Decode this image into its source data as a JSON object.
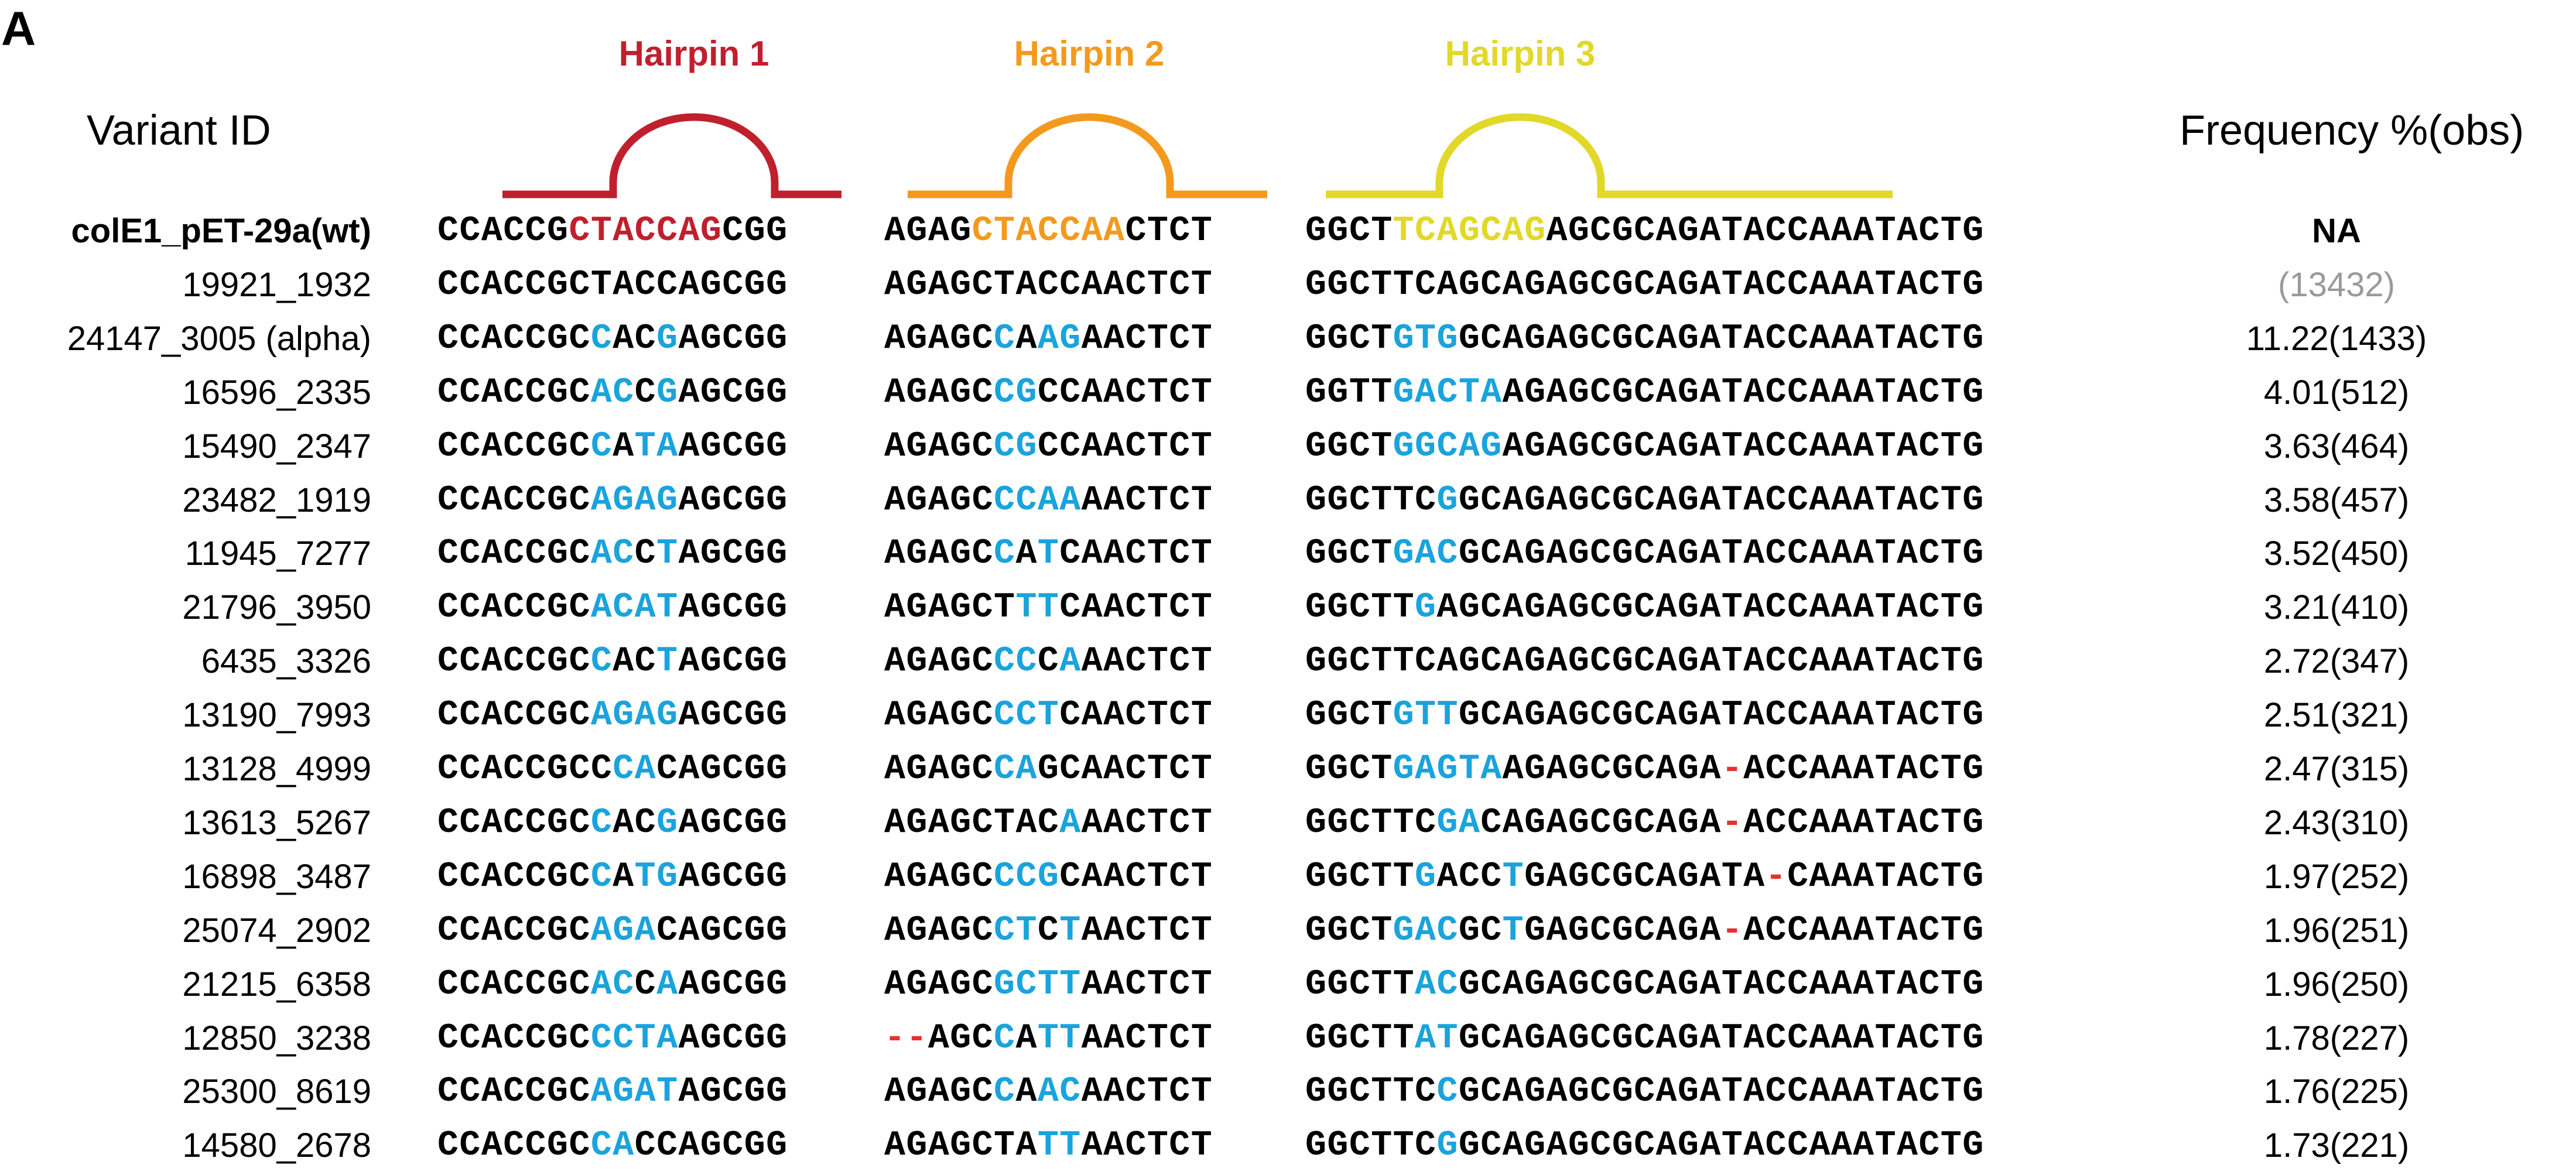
{
  "panel_label": "A",
  "headers": {
    "variant_id": "Variant ID",
    "frequency": "Frequency %(obs)"
  },
  "hairpins": [
    {
      "label": "Hairpin 1",
      "color": "#c0202e"
    },
    {
      "label": "Hairpin 2",
      "color": "#f39a1e"
    },
    {
      "label": "Hairpin 3",
      "color": "#e2d829"
    }
  ],
  "colors": {
    "base": "#000000",
    "mutation": "#1aa3dc",
    "deletion": "#e8312c",
    "hairpin1": "#c0202e",
    "hairpin2": "#f39a1e",
    "hairpin3": "#e2d829",
    "grey_count": "#9a9a9a"
  },
  "rows": [
    {
      "id": "colE1_pET-29a(wt)",
      "freq": "NA",
      "bold": true,
      "seq1": "CCACCGCTACCAGCGG",
      "seq2": "AGAGCTACCAACTCT",
      "seq3": "GGCTTCAGCAGAGCGCAGATACCAAATACTG",
      "m1": "bbbbbb1111111bbb",
      "m2": "bbbb2222222bbbb",
      "m3": "bbbb3333333bbbbbbbbbbbbbbbbbbbb"
    },
    {
      "id": "19921_1932",
      "freq": "(13432)",
      "grey": true,
      "seq1": "CCACCGCTACCAGCGG",
      "seq2": "AGAGCTACCAACTCT",
      "seq3": "GGCTTCAGCAGAGCGCAGATACCAAATACTG",
      "m1": "bbbbbbbbbbbbbbbb",
      "m2": "bbbbbbbbbbbbbbb",
      "m3": "bbbbbbbbbbbbbbbbbbbbbbbbbbbbbbb"
    },
    {
      "id": "24147_3005 (alpha)",
      "freq": "11.22(1433)",
      "seq1": "CCACCGCCACGAGCGG",
      "seq2": "AGAGCCAAGAACTCT",
      "seq3": "GGCTGTGGCAGAGCGCAGATACCAAATACTG",
      "m1": "bbbbbbbmbbmbbbbb",
      "m2": "bbbbbmbmmbbbbbb",
      "m3": "bbbbmmmbbbbbbbbbbbbbbbbbbbbbbbb"
    },
    {
      "id": "16596_2335",
      "freq": "4.01(512)",
      "seq1": "CCACCGCACCGAGCGG",
      "seq2": "AGAGCCGCCAACTCT",
      "seq3": "GGTTGACTAAGAGCGCAGATACCAAATACTG",
      "m1": "bbbbbbbmmbmbbbbb",
      "m2": "bbbbbmmbbbbbbbb",
      "m3": "bbbbmmmmmbbbbbbbbbbbbbbbbbbbbbb"
    },
    {
      "id": "15490_2347",
      "freq": "3.63(464)",
      "seq1": "CCACCGCCATAAGCGG",
      "seq2": "AGAGCCGCCAACTCT",
      "seq3": "GGCTGGCAGAGAGCGCAGATACCAAATACTG",
      "m1": "bbbbbbbmbmmbbbbb",
      "m2": "bbbbbmmbbbbbbbb",
      "m3": "bbbbmmmmmbbbbbbbbbbbbbbbbbbbbbb"
    },
    {
      "id": "23482_1919",
      "freq": "3.58(457)",
      "seq1": "CCACCGCAGAGAGCGG",
      "seq2": "AGAGCCCAAAACTCT",
      "seq3": "GGCTTCGGCAGAGCGCAGATACCAAATACTG",
      "m1": "bbbbbbbmmmmbbbbb",
      "m2": "bbbbbmmmmbbbbbb",
      "m3": "bbbbbbmbbbbbbbbbbbbbbbbbbbbbbbb"
    },
    {
      "id": "11945_7277",
      "freq": "3.52(450)",
      "seq1": "CCACCGCACCTAGCGG",
      "seq2": "AGAGCCATCAACTCT",
      "seq3": "GGCTGACGCAGAGCGCAGATACCAAATACTG",
      "m1": "bbbbbbbmmbmbbbbb",
      "m2": "bbbbbmbmbbbbbbb",
      "m3": "bbbbmmmbbbbbbbbbbbbbbbbbbbbbbbb"
    },
    {
      "id": "21796_3950",
      "freq": "3.21(410)",
      "seq1": "CCACCGCACATAGCGG",
      "seq2": "AGAGCTTTCAACTCT",
      "seq3": "GGCTTGAGCAGAGCGCAGATACCAAATACTG",
      "m1": "bbbbbbbmmmmbbbbb",
      "m2": "bbbbbbmmbbbbbbb",
      "m3": "bbbbbmbbbbbbbbbbbbbbbbbbbbbbbbb"
    },
    {
      "id": "6435_3326",
      "freq": "2.72(347)",
      "seq1": "CCACCGCCACTAGCGG",
      "seq2": "AGAGCCCCAAACTCT",
      "seq3": "GGCTTCAGCAGAGCGCAGATACCAAATACTG",
      "m1": "bbbbbbbmbbmbbbbb",
      "m2": "bbbbbmmbmbbbbbb",
      "m3": "bbbbbbbbbbbbbbbbbbbbbbbbbbbbbbb"
    },
    {
      "id": "13190_7993",
      "freq": "2.51(321)",
      "seq1": "CCACCGCAGAGAGCGG",
      "seq2": "AGAGCCCTCAACTCT",
      "seq3": "GGCTGTTGCAGAGCGCAGATACCAAATACTG",
      "m1": "bbbbbbbmmmmbbbbb",
      "m2": "bbbbbmmmbbbbbbb",
      "m3": "bbbbmmmbbbbbbbbbbbbbbbbbbbbbbbb"
    },
    {
      "id": "13128_4999",
      "freq": "2.47(315)",
      "seq1": "CCACCGCCCACAGCGG",
      "seq2": "AGAGCCAGCAACTCT",
      "seq3": "GGCTGAGTAAGAGCGCAGA-ACCAAATACTG",
      "m1": "bbbbbbbbmmbbbbbb",
      "m2": "bbbbbmmbbbbbbbb",
      "m3": "bbbbmmmmmbbbbbbbbbbdbbbbbbbbbbb"
    },
    {
      "id": "13613_5267",
      "freq": "2.43(310)",
      "seq1": "CCACCGCCACGAGCGG",
      "seq2": "AGAGCTACAAACTCT",
      "seq3": "GGCTTCGACAGAGCGCAGA-ACCAAATACTG",
      "m1": "bbbbbbbmbbmbbbbb",
      "m2": "bbbbbbbbmbbbbbb",
      "m3": "bbbbbbmmbbbbbbbbbbbdbbbbbbbbbbb"
    },
    {
      "id": "16898_3487",
      "freq": "1.97(252)",
      "seq1": "CCACCGCCATGAGCGG",
      "seq2": "AGAGCCCGCAACTCT",
      "seq3": "GGCTTGACCTGAGCGCAGATA-CAAATACTG",
      "m1": "bbbbbbbmbmmbbbbb",
      "m2": "bbbbbmmmbbbbbbb",
      "m3": "bbbbbmbbbmbbbbbbbbbbbdbbbbbbbbb"
    },
    {
      "id": "25074_2902",
      "freq": "1.96(251)",
      "seq1": "CCACCGCAGACAGCGG",
      "seq2": "AGAGCCTCTAACTCT",
      "seq3": "GGCTGACGCTGAGCGCAGA-ACCAAATACTG",
      "m1": "bbbbbbbmmmbbbbbb",
      "m2": "bbbbbmmbmbbbbbb",
      "m3": "bbbbmmmbbmbbbbbbbbbdbbbbbbbbbbb"
    },
    {
      "id": "21215_6358",
      "freq": "1.96(250)",
      "seq1": "CCACCGCACCAAGCGG",
      "seq2": "AGAGCGCTTAACTCT",
      "seq3": "GGCTTACGCAGAGCGCAGATACCAAATACTG",
      "m1": "bbbbbbbmmbmbbbbb",
      "m2": "bbbbbmmmmbbbbbb",
      "m3": "bbbbbmmbbbbbbbbbbbbbbbbbbbbbbbb"
    },
    {
      "id": "12850_3238",
      "freq": "1.78(227)",
      "seq1": "CCACCGCCCTAAGCGG",
      "seq2": "--AGCCATTAACTCT",
      "seq3": "GGCTTATGCAGAGCGCAGATACCAAATACTG",
      "m1": "bbbbbbbmmmmbbbbb",
      "m2": "ddbbbmbmmbbbbbb",
      "m3": "bbbbbmmbbbbbbbbbbbbbbbbbbbbbbbb"
    },
    {
      "id": "25300_8619",
      "freq": "1.76(225)",
      "seq1": "CCACCGCAGATAGCGG",
      "seq2": "AGAGCCAACAACTCT",
      "seq3": "GGCTTCCGCAGAGCGCAGATACCAAATACTG",
      "m1": "bbbbbbbmmmmbbbbb",
      "m2": "bbbbbmbmmbbbbbb",
      "m3": "bbbbbbmbbbbbbbbbbbbbbbbbbbbbbbb"
    },
    {
      "id": "14580_2678",
      "freq": "1.73(221)",
      "seq1": "CCACCGCCACCAGCGG",
      "seq2": "AGAGCTATTAACTCT",
      "seq3": "GGCTTCGGCAGAGCGCAGATACCAAATACTG",
      "m1": "bbbbbbbmmbbbbbbb",
      "m2": "bbbbbbbmmbbbbbb",
      "m3": "bbbbbbmbbbbbbbbbbbbbbbbbbbbbbbb"
    }
  ]
}
